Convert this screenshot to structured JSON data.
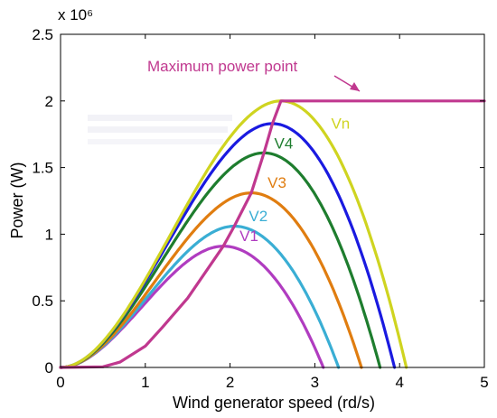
{
  "chart_data": {
    "type": "line",
    "title": "",
    "xlabel": "Wind generator speed (rd/s)",
    "ylabel": "Power (W)",
    "y_scale_label": "x 10⁶",
    "xlim": [
      0,
      5
    ],
    "ylim": [
      0,
      2500000
    ],
    "xticks": [
      "0",
      "1",
      "2",
      "3",
      "4",
      "5"
    ],
    "yticks": [
      "0",
      "0.5",
      "1",
      "1.5",
      "2",
      "2.5"
    ],
    "grid": false,
    "series": [
      {
        "name": "V1",
        "color": "#b03cc0",
        "peak_x": 1.92,
        "peak_y": 910000,
        "end_x": 3.1
      },
      {
        "name": "V2",
        "color": "#3aaed4",
        "peak_x": 2.05,
        "peak_y": 1060000,
        "end_x": 3.28
      },
      {
        "name": "V3",
        "color": "#e07d10",
        "peak_x": 2.25,
        "peak_y": 1310000,
        "end_x": 3.55
      },
      {
        "name": "V4",
        "color": "#1e7d2e",
        "peak_x": 2.4,
        "peak_y": 1610000,
        "end_x": 3.77
      },
      {
        "name": "",
        "color": "#1a1ae0",
        "peak_x": 2.5,
        "peak_y": 1830000,
        "end_x": 3.94
      },
      {
        "name": "Vn",
        "color": "#cfd420",
        "peak_x": 2.6,
        "peak_y": 2000000,
        "end_x": 4.08
      }
    ],
    "mpp_curve": {
      "color": "#c0388f",
      "x": [
        0,
        0.5,
        0.7,
        1.0,
        1.2,
        1.5,
        1.92,
        2.05,
        2.25,
        2.4,
        2.5,
        2.6,
        2.72,
        5.0
      ],
      "y": [
        0,
        5000,
        40000,
        160000,
        300000,
        520000,
        910000,
        1060000,
        1310000,
        1610000,
        1830000,
        2000000,
        2000000,
        2000000
      ]
    },
    "annotation": {
      "text": "Maximum power point",
      "color": "#c0388f"
    }
  }
}
